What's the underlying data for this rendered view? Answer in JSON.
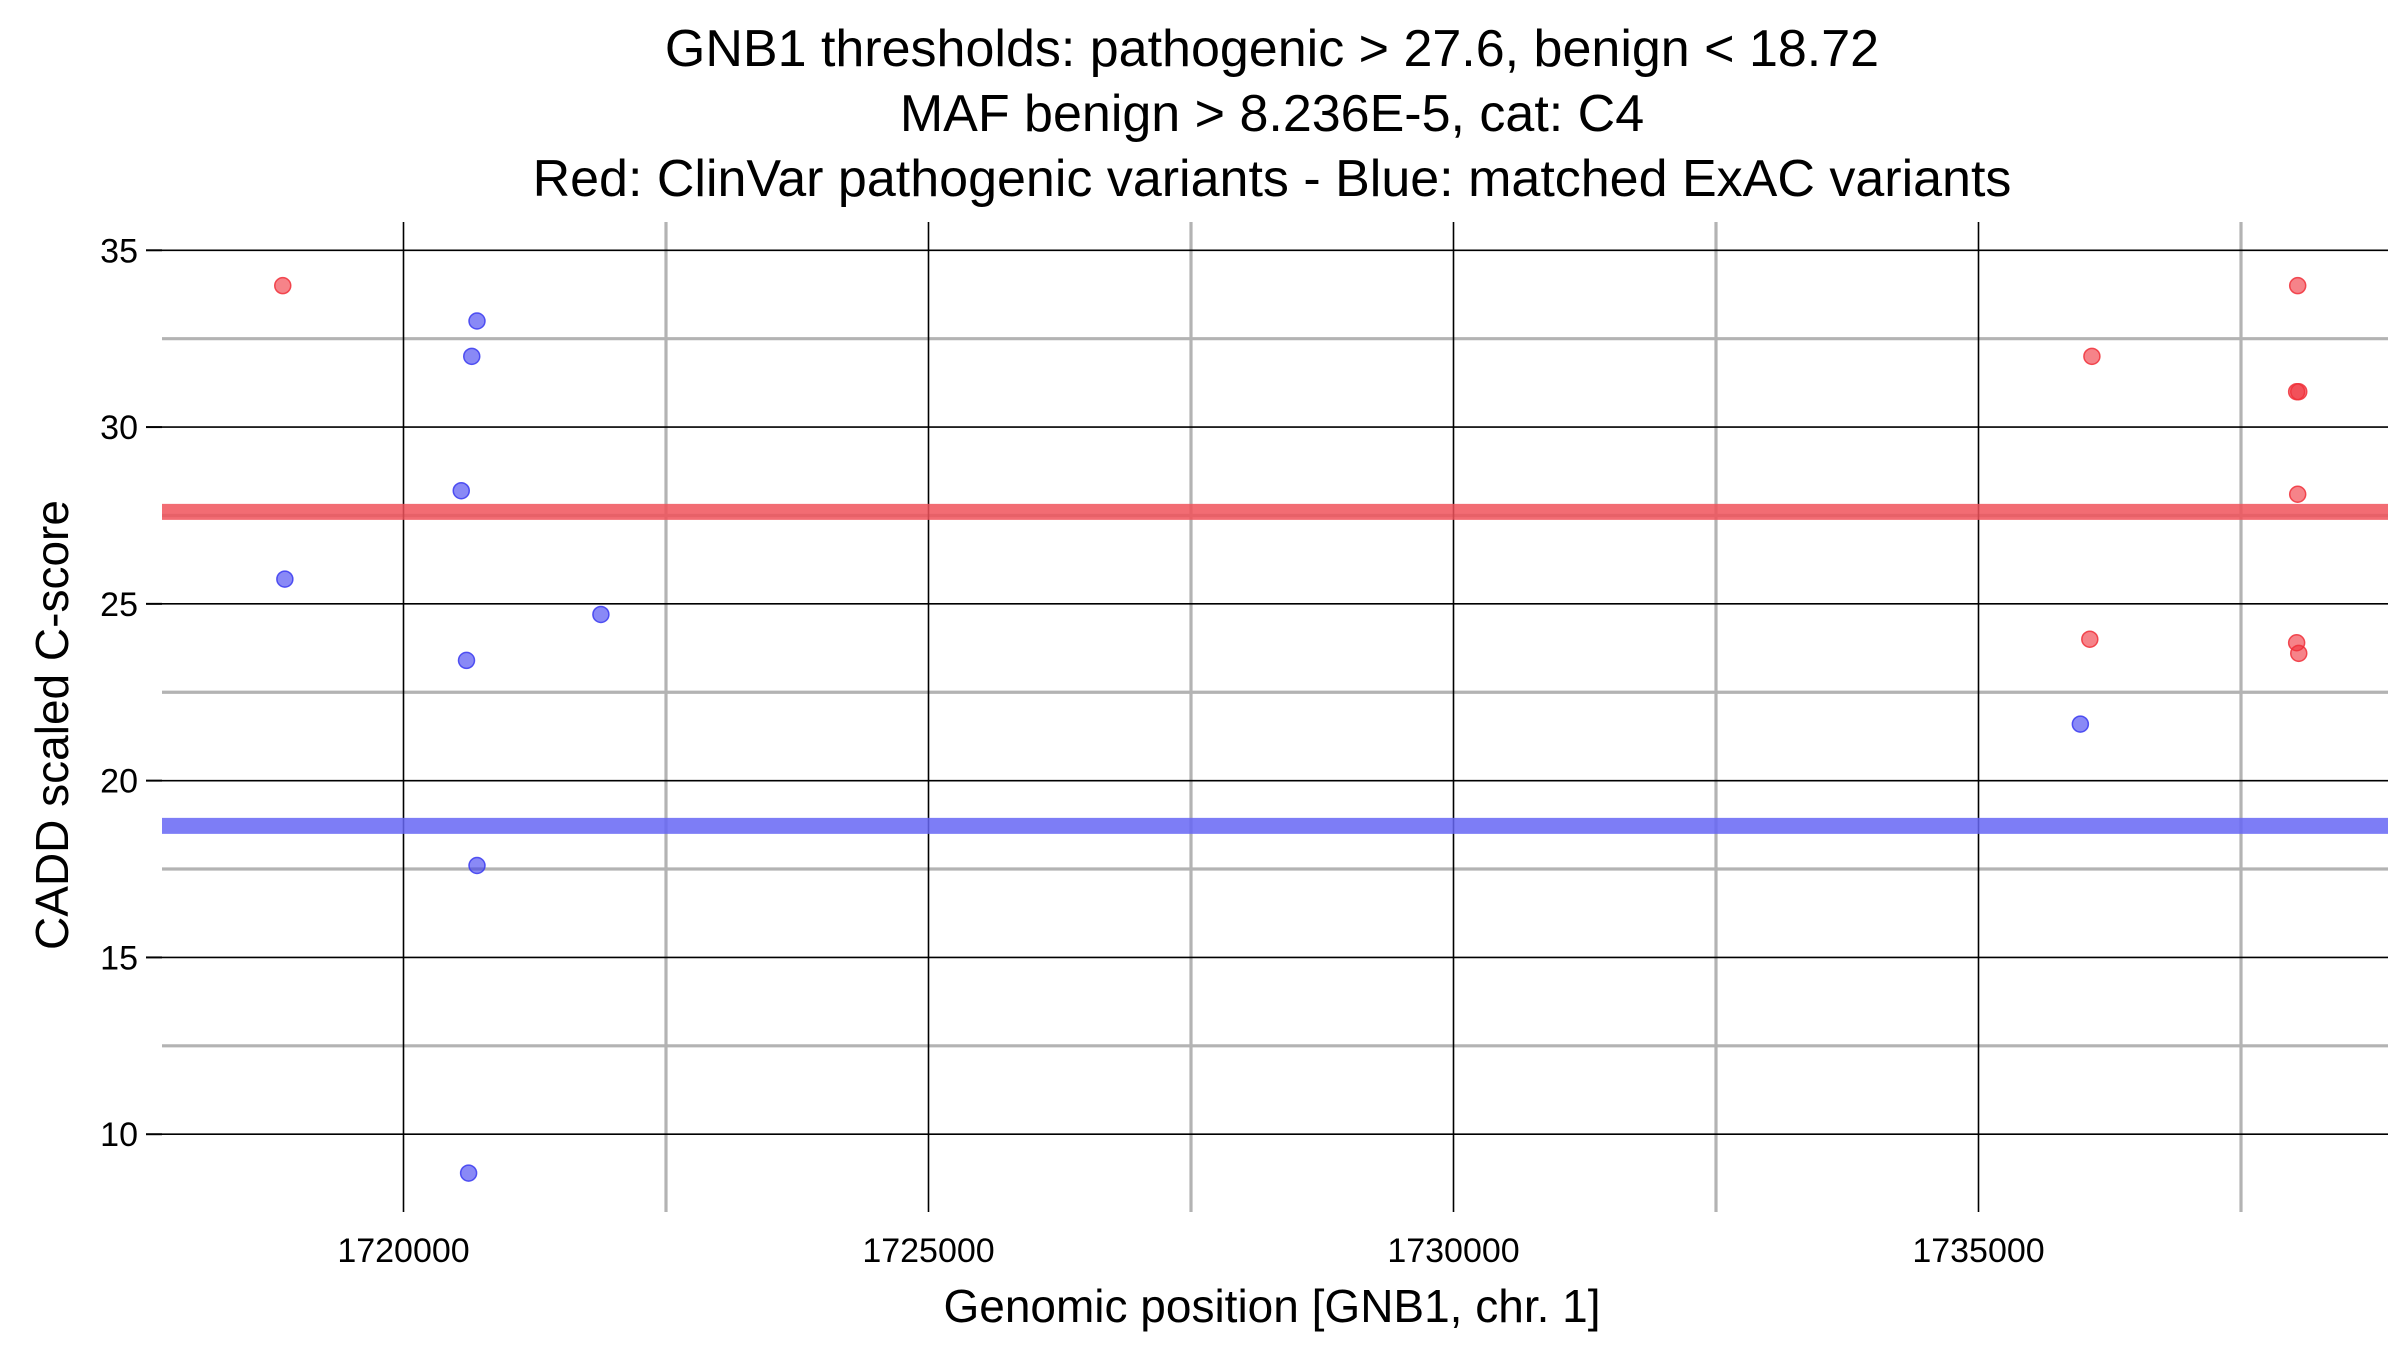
{
  "chart_data": {
    "type": "scatter",
    "title_lines": [
      "GNB1 thresholds: pathogenic > 27.6, benign < 18.72",
      "MAF benign > 8.236E-5, cat: C4",
      "Red: ClinVar pathogenic variants - Blue: matched ExAC variants"
    ],
    "xlabel": "Genomic position [GNB1, chr. 1]",
    "ylabel": "CADD scaled C-score",
    "xlim": [
      1717700,
      1738900
    ],
    "ylim": [
      7.8,
      35.8
    ],
    "x_major_ticks": [
      1720000,
      1725000,
      1730000,
      1735000
    ],
    "x_minor_ticks": [
      1722500,
      1727500,
      1732500,
      1737500
    ],
    "y_major_ticks": [
      10,
      15,
      20,
      25,
      30,
      35
    ],
    "y_minor_ticks": [
      12.5,
      17.5,
      22.5,
      27.5,
      32.5
    ],
    "x_tick_labels": [
      "1720000",
      "1725000",
      "1730000",
      "1735000"
    ],
    "y_tick_labels": [
      "10",
      "15",
      "20",
      "25",
      "30",
      "35"
    ],
    "thresholds": [
      {
        "value": 27.6,
        "color": "#f0525a"
      },
      {
        "value": 18.72,
        "color": "#6666f5"
      }
    ],
    "series": [
      {
        "color": "#f0303a",
        "points": [
          {
            "x": 1718850,
            "y": 34.0
          },
          {
            "x": 1736080,
            "y": 32.0
          },
          {
            "x": 1736060,
            "y": 24.0
          },
          {
            "x": 1738040,
            "y": 34.0
          },
          {
            "x": 1738030,
            "y": 31.0
          },
          {
            "x": 1738050,
            "y": 31.0
          },
          {
            "x": 1738040,
            "y": 28.1
          },
          {
            "x": 1738030,
            "y": 23.9
          },
          {
            "x": 1738050,
            "y": 23.6
          }
        ]
      },
      {
        "color": "#3a3af0",
        "points": [
          {
            "x": 1718870,
            "y": 25.7
          },
          {
            "x": 1720700,
            "y": 33.0
          },
          {
            "x": 1720650,
            "y": 32.0
          },
          {
            "x": 1720550,
            "y": 28.2
          },
          {
            "x": 1720600,
            "y": 23.4
          },
          {
            "x": 1720700,
            "y": 17.6
          },
          {
            "x": 1720620,
            "y": 8.9
          },
          {
            "x": 1721880,
            "y": 24.7
          },
          {
            "x": 1735970,
            "y": 21.6
          }
        ]
      }
    ]
  }
}
